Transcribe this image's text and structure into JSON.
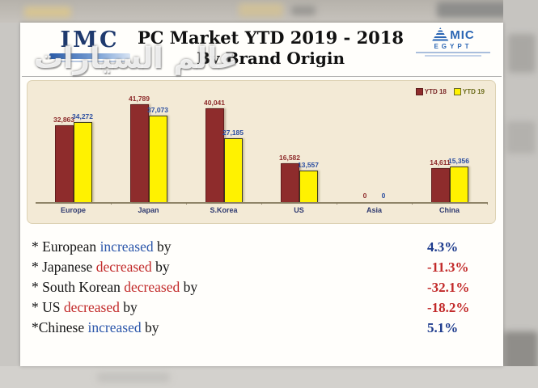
{
  "watermark": "عالم السيارات",
  "header": {
    "imc": {
      "text": "IMC"
    },
    "title_line1": "PC Market YTD 2019 - 2018",
    "title_line2": "By Brand Origin",
    "amic": {
      "name": "MIC",
      "sub": "EGYPT"
    }
  },
  "chart_data": {
    "type": "bar",
    "title": "PC Market YTD 2019 - 2018 By Brand Origin",
    "categories": [
      "Europe",
      "Japan",
      "S.Korea",
      "US",
      "Asia",
      "China"
    ],
    "series": [
      {
        "name": "YTD 18",
        "values": [
          32863,
          41789,
          40041,
          16582,
          0,
          14611
        ],
        "labels": [
          "32,863",
          "41,789",
          "40,041",
          "16,582",
          "0",
          "14,611"
        ],
        "bar_color": "#8e2c2c",
        "label_color": "#8e2c2c"
      },
      {
        "name": "YTD 19",
        "values": [
          34272,
          37073,
          27185,
          13557,
          0,
          15356
        ],
        "labels": [
          "34,272",
          "37,073",
          "27,185",
          "13,557",
          "0",
          "15,356"
        ],
        "bar_color": "#fff200",
        "label_color": "#2b4ea0"
      }
    ],
    "ylim": [
      0,
      45000
    ],
    "grid": false,
    "legend_position": "top-right",
    "plot_bg": "#f3ead6"
  },
  "bullets": [
    {
      "text_before": "* European ",
      "verb": "increased",
      "text_after": " by",
      "direction": "up",
      "value": "4.3%"
    },
    {
      "text_before": "* Japanese ",
      "verb": "decreased",
      "text_after": " by",
      "direction": "down",
      "value": "-11.3%"
    },
    {
      "text_before": "* South Korean ",
      "verb": "decreased",
      "text_after": " by",
      "direction": "down",
      "value": "-32.1%"
    },
    {
      "text_before": "* US ",
      "verb": "decreased",
      "text_after": " by",
      "direction": "down",
      "value": "-18.2%"
    },
    {
      "text_before": "*Chinese ",
      "verb": "increased",
      "text_after": " by",
      "direction": "up",
      "value": "5.1%"
    }
  ],
  "colors": {
    "bar_ytd18": "#8e2c2c",
    "bar_ytd19": "#fff200",
    "increase_text": "#2b56aa",
    "decrease_text": "#c22a2a",
    "positive_value": "#1c3a8c",
    "negative_value": "#c22a2a",
    "chart_bg": "#f3ead6"
  }
}
